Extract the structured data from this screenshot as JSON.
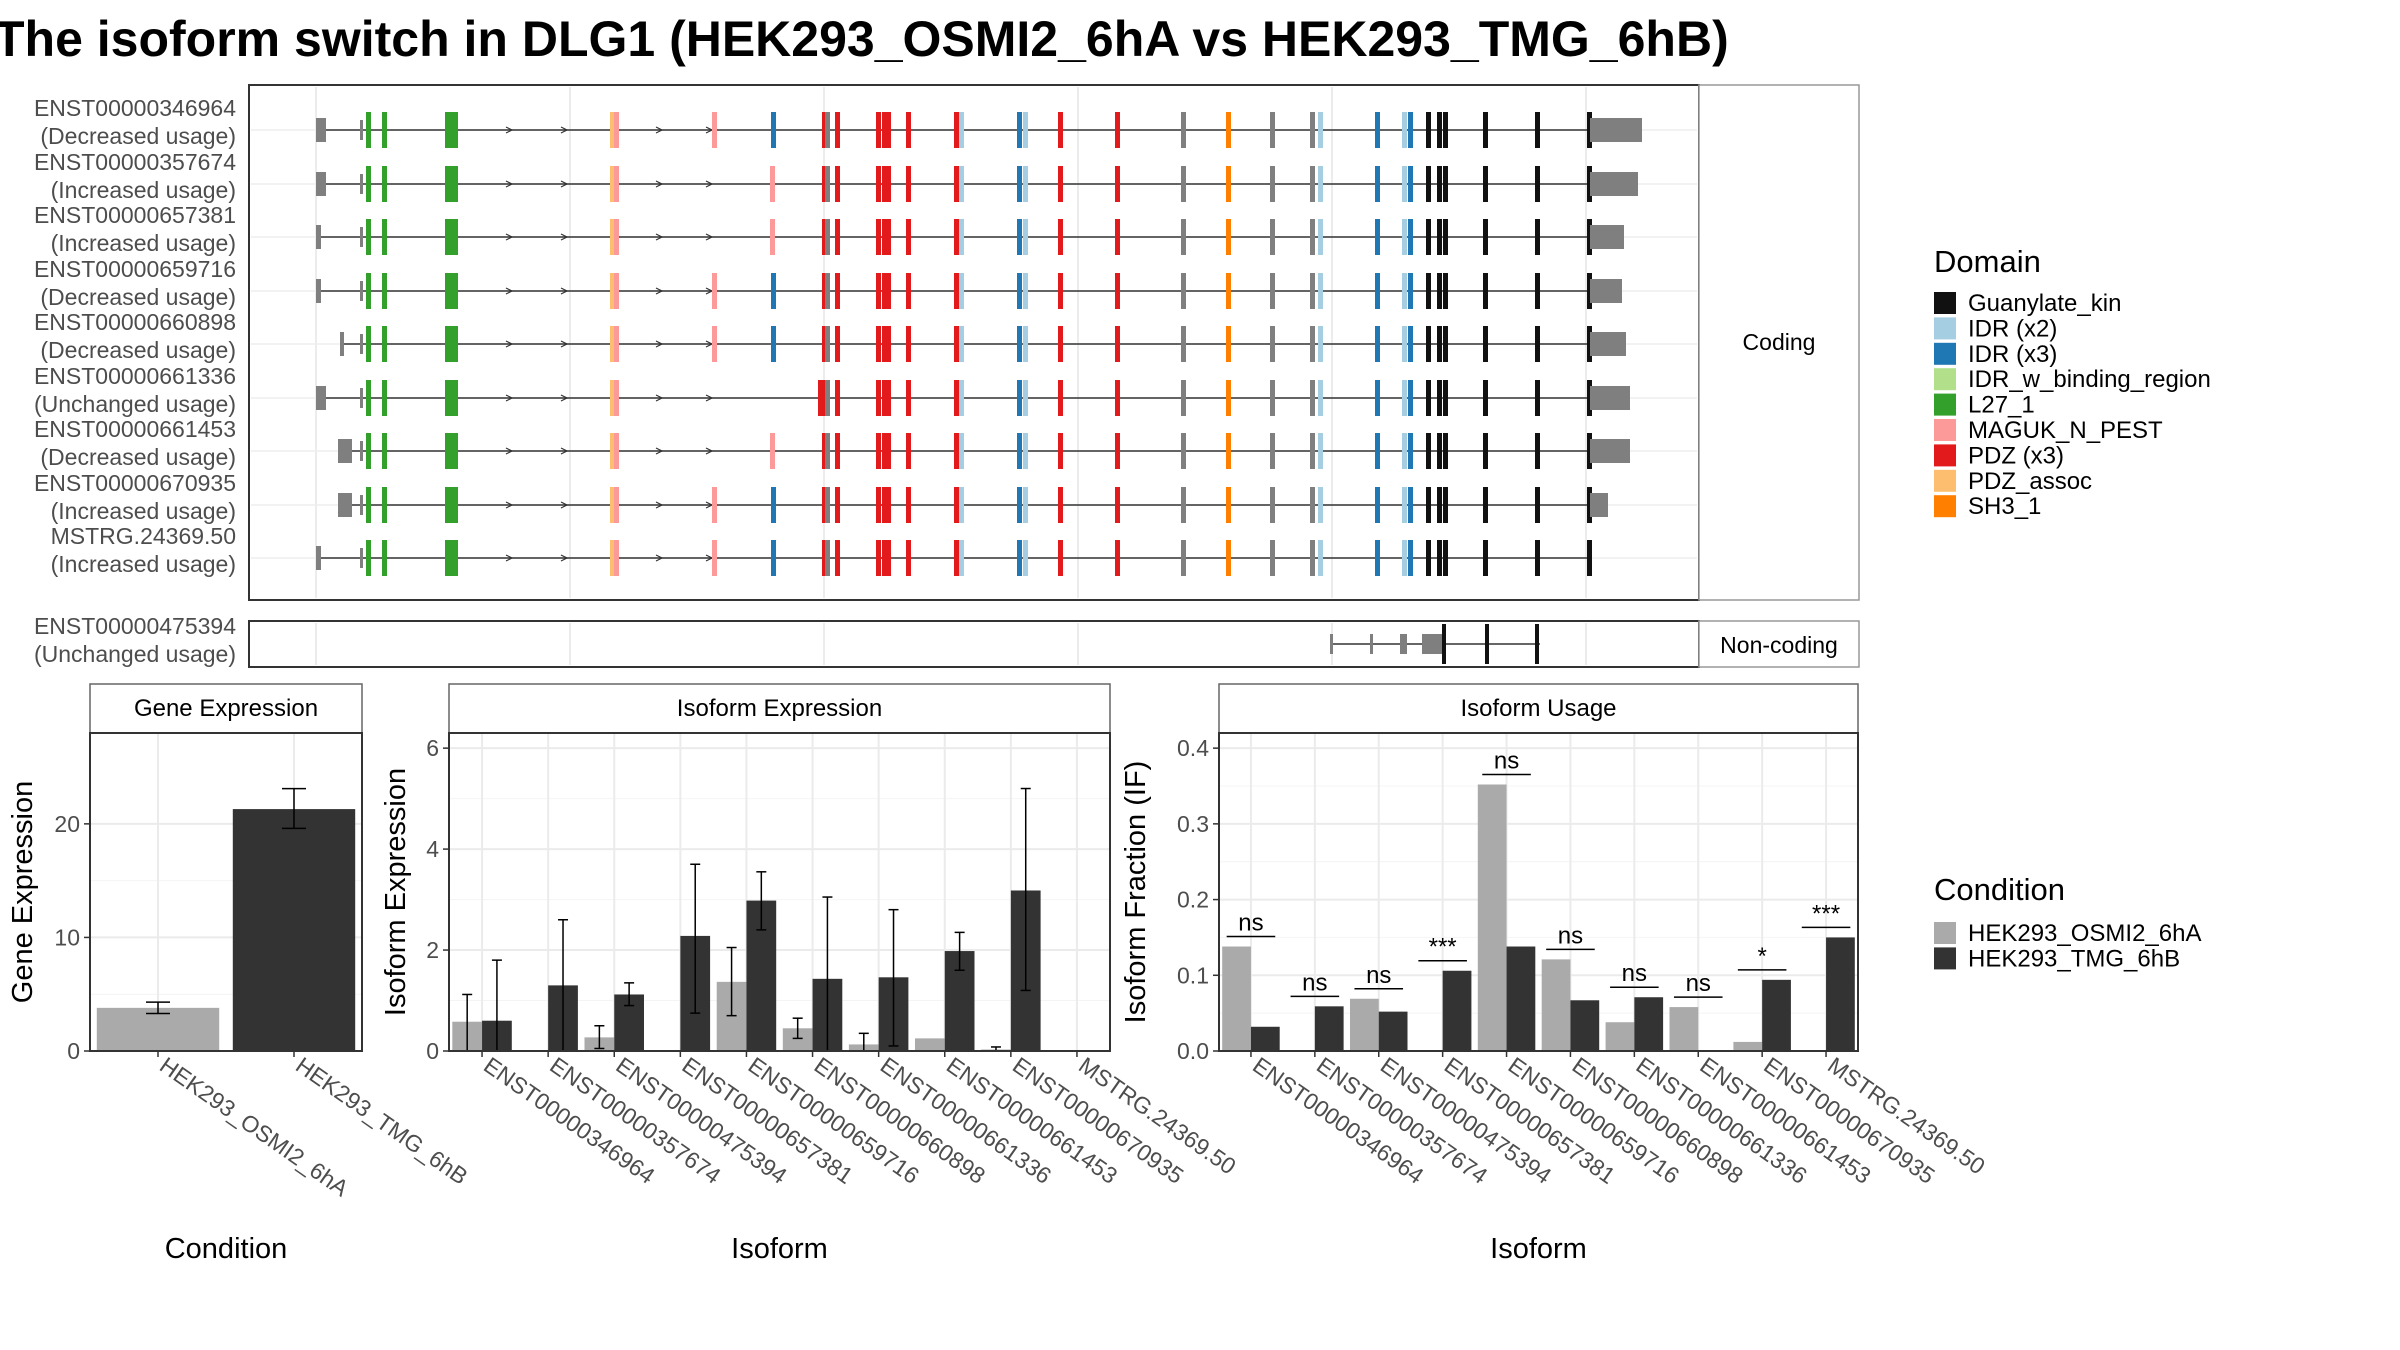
{
  "title": "The isoform switch in DLG1 (HEK293_OSMI2_6hA vs HEK293_TMG_6hB)",
  "structure": {
    "facet_labels": [
      "Coding",
      "Non-coding"
    ],
    "coding_isoforms": [
      {
        "id": "ENST00000346964",
        "usage": "(Decreased usage)"
      },
      {
        "id": "ENST00000357674",
        "usage": "(Increased usage)"
      },
      {
        "id": "ENST00000657381",
        "usage": "(Increased usage)"
      },
      {
        "id": "ENST00000659716",
        "usage": "(Decreased usage)"
      },
      {
        "id": "ENST00000660898",
        "usage": "(Decreased usage)"
      },
      {
        "id": "ENST00000661336",
        "usage": "(Unchanged usage)"
      },
      {
        "id": "ENST00000661453",
        "usage": "(Decreased usage)"
      },
      {
        "id": "ENST00000670935",
        "usage": "(Increased usage)"
      },
      {
        "id": "MSTRG.24369.50",
        "usage": "(Increased usage)"
      }
    ],
    "noncoding_isoforms": [
      {
        "id": "ENST00000475394",
        "usage": "(Unchanged usage)"
      }
    ]
  },
  "legend_domain": {
    "title": "Domain",
    "items": [
      {
        "label": "Guanylate_kin",
        "color": "#111111"
      },
      {
        "label": "IDR (x2)",
        "color": "#a6cee3"
      },
      {
        "label": "IDR (x3)",
        "color": "#1f78b4"
      },
      {
        "label": "IDR_w_binding_region",
        "color": "#b2df8a"
      },
      {
        "label": "L27_1",
        "color": "#33a02c"
      },
      {
        "label": "MAGUK_N_PEST",
        "color": "#fb9a99"
      },
      {
        "label": "PDZ (x3)",
        "color": "#e31a1c"
      },
      {
        "label": "PDZ_assoc",
        "color": "#fdbf6f"
      },
      {
        "label": "SH3_1",
        "color": "#ff7f00"
      }
    ]
  },
  "legend_condition": {
    "title": "Condition",
    "items": [
      {
        "label": "HEK293_OSMI2_6hA",
        "color": "#aaaaaa"
      },
      {
        "label": "HEK293_TMG_6hB",
        "color": "#333333"
      }
    ]
  },
  "chart_data": [
    {
      "type": "bar",
      "title": "Gene Expression",
      "xlabel": "Condition",
      "ylabel": "Gene Expression",
      "ylim": [
        0,
        28
      ],
      "yticks": [
        0,
        10,
        20
      ],
      "categories": [
        "HEK293_OSMI2_6hA",
        "HEK293_TMG_6hB"
      ],
      "values": [
        3.8,
        21.3
      ],
      "errors": [
        [
          3.3,
          4.3
        ],
        [
          19.6,
          23.1
        ]
      ],
      "colors": [
        "#aaaaaa",
        "#333333"
      ]
    },
    {
      "type": "bar",
      "title": "Isoform Expression",
      "xlabel": "Isoform",
      "ylabel": "Isoform Expression",
      "ylim": [
        0,
        6.3
      ],
      "yticks": [
        0,
        2,
        4,
        6
      ],
      "categories": [
        "ENST00000346964",
        "ENST00000357674",
        "ENST00000475394",
        "ENST00000657381",
        "ENST00000659716",
        "ENST00000660898",
        "ENST00000661336",
        "ENST00000661453",
        "ENST00000670935",
        "MSTRG.24369.50"
      ],
      "series": [
        {
          "name": "HEK293_OSMI2_6hA",
          "values": [
            0.58,
            0.0,
            0.27,
            0.0,
            1.37,
            0.45,
            0.13,
            0.25,
            0.03,
            0.0
          ],
          "err_low": [
            0.0,
            0.0,
            0.05,
            0.0,
            0.7,
            0.25,
            0.0,
            0.0,
            0.0,
            0.0
          ],
          "err_high": [
            1.12,
            0.0,
            0.5,
            0.0,
            2.05,
            0.65,
            0.35,
            0.0,
            0.08,
            0.0
          ]
        },
        {
          "name": "HEK293_TMG_6hB",
          "values": [
            0.6,
            1.3,
            1.12,
            2.28,
            2.98,
            1.43,
            1.46,
            1.98,
            3.18,
            0.0
          ],
          "err_low": [
            0.0,
            0.0,
            0.9,
            0.75,
            2.4,
            0.0,
            0.1,
            1.6,
            1.2,
            0.0
          ],
          "err_high": [
            1.8,
            2.6,
            1.35,
            3.7,
            3.55,
            3.05,
            2.8,
            2.35,
            5.2,
            0.0
          ]
        }
      ]
    },
    {
      "type": "bar",
      "title": "Isoform Usage",
      "xlabel": "Isoform",
      "ylabel": "Isoform Fraction (IF)",
      "ylim": [
        0,
        0.42
      ],
      "yticks": [
        0.0,
        0.1,
        0.2,
        0.3,
        0.4
      ],
      "categories": [
        "ENST00000346964",
        "ENST00000357674",
        "ENST00000475394",
        "ENST00000657381",
        "ENST00000659716",
        "ENST00000660898",
        "ENST00000661336",
        "ENST00000661453",
        "ENST00000670935",
        "MSTRG.24369.50"
      ],
      "series": [
        {
          "name": "HEK293_OSMI2_6hA",
          "values": [
            0.138,
            0.0,
            0.069,
            0.0,
            0.352,
            0.121,
            0.038,
            0.058,
            0.012,
            0.0
          ]
        },
        {
          "name": "HEK293_TMG_6hB",
          "values": [
            0.032,
            0.059,
            0.052,
            0.106,
            0.138,
            0.067,
            0.071,
            0.0,
            0.094,
            0.15
          ]
        }
      ],
      "significance": [
        "ns",
        "ns",
        "ns",
        "***",
        "ns",
        "ns",
        "ns",
        "ns",
        "*",
        "***"
      ]
    }
  ]
}
